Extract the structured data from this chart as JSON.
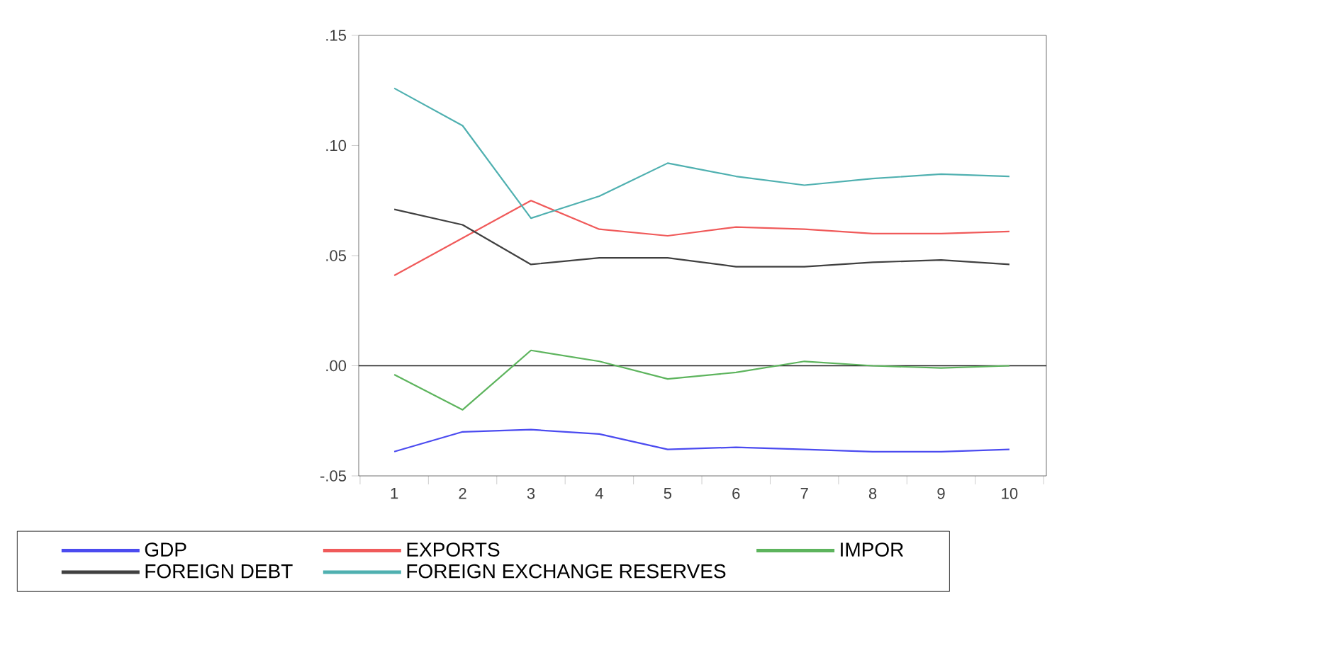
{
  "chart_data": {
    "type": "line",
    "categories": [
      "1",
      "2",
      "3",
      "4",
      "5",
      "6",
      "7",
      "8",
      "9",
      "10"
    ],
    "series": [
      {
        "name": "GDP",
        "color": "#4b4bf0",
        "values": [
          -0.039,
          -0.03,
          -0.029,
          -0.031,
          -0.038,
          -0.037,
          -0.038,
          -0.039,
          -0.039,
          -0.038
        ]
      },
      {
        "name": "EXPORTS",
        "color": "#f05a5a",
        "values": [
          0.041,
          0.058,
          0.075,
          0.062,
          0.059,
          0.063,
          0.062,
          0.06,
          0.06,
          0.061
        ]
      },
      {
        "name": "IMPOR",
        "color": "#5db45d",
        "values": [
          -0.004,
          -0.02,
          0.007,
          0.002,
          -0.006,
          -0.003,
          0.002,
          0.0,
          -0.001,
          0.0
        ]
      },
      {
        "name": "FOREIGN DEBT",
        "color": "#404040",
        "values": [
          0.071,
          0.064,
          0.046,
          0.049,
          0.049,
          0.045,
          0.045,
          0.047,
          0.048,
          0.046
        ]
      },
      {
        "name": "FOREIGN EXCHANGE RESERVES",
        "color": "#4fb0b0",
        "values": [
          0.126,
          0.109,
          0.067,
          0.077,
          0.092,
          0.086,
          0.082,
          0.085,
          0.087,
          0.086
        ]
      }
    ],
    "ylim": [
      -0.05,
      0.15
    ],
    "yticks": [
      {
        "value": -0.05,
        "label": "-.05"
      },
      {
        "value": 0.0,
        "label": ".00"
      },
      {
        "value": 0.05,
        "label": ".05"
      },
      {
        "value": 0.1,
        "label": ".10"
      },
      {
        "value": 0.15,
        "label": ".15"
      }
    ],
    "ref_lines": [
      {
        "axis": "y",
        "value": 0,
        "color": "#202020"
      }
    ],
    "legend": "bottom",
    "grid": false,
    "marker": "none",
    "line_style": "solid"
  }
}
